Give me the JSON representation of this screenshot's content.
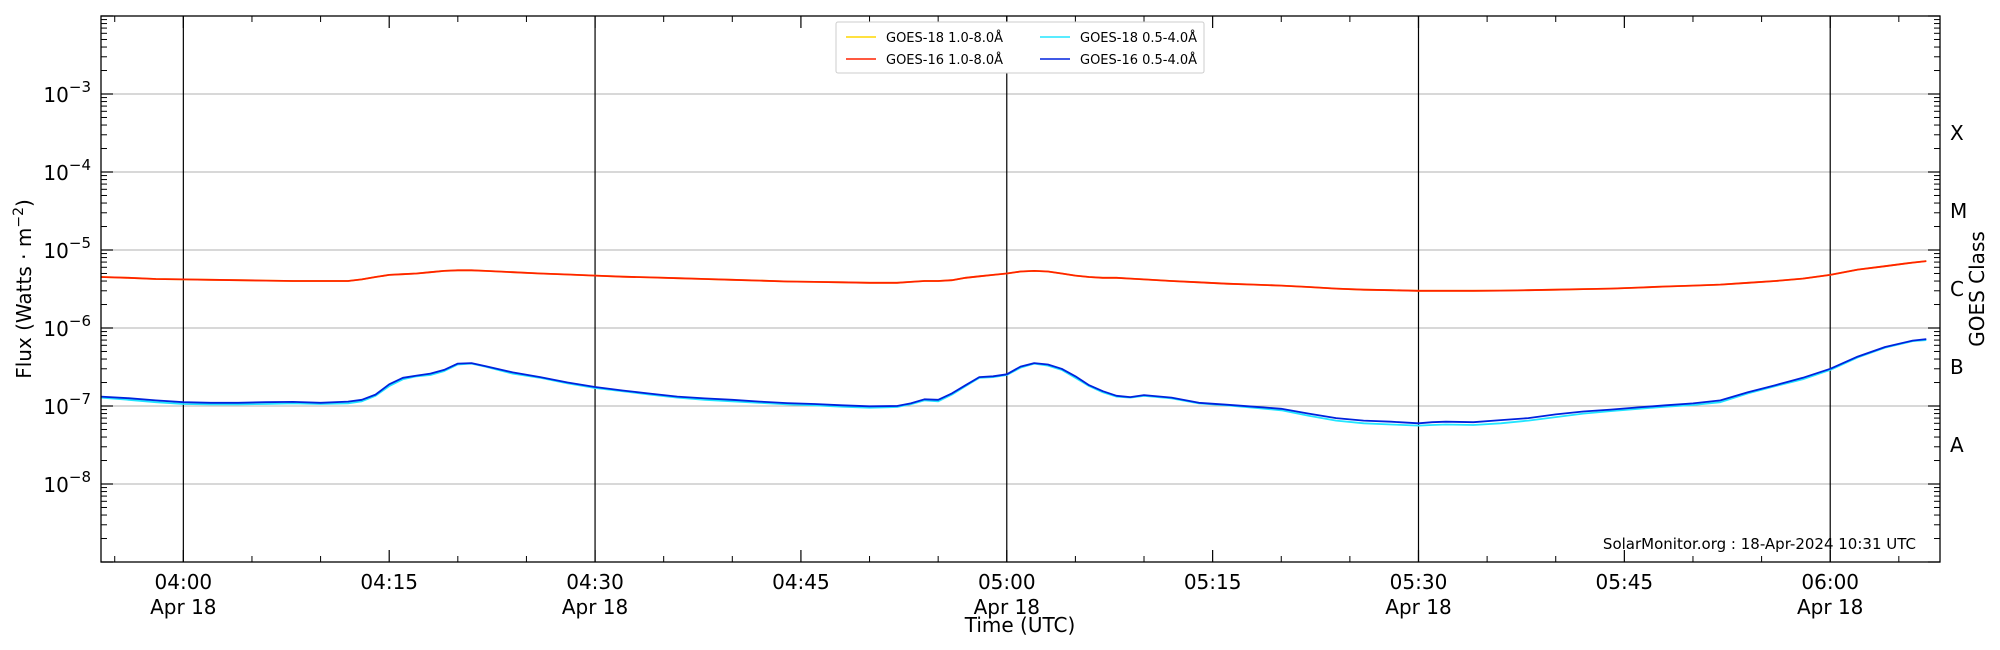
{
  "chart_data": {
    "type": "line",
    "xlabel": "Time (UTC)",
    "ylabel": "Flux (Watts · m",
    "ylabel_sup": "−2",
    "ylabel_end": ")",
    "right_axis_label": "GOES Class",
    "y_scale": "log",
    "xlim": [
      "03:54",
      "06:08"
    ],
    "ylim_exponent": [
      -9,
      -2
    ],
    "y_ticks": [
      {
        "exp": -8,
        "base": "10",
        "sup": "−8"
      },
      {
        "exp": -7,
        "base": "10",
        "sup": "−7"
      },
      {
        "exp": -6,
        "base": "10",
        "sup": "−6"
      },
      {
        "exp": -5,
        "base": "10",
        "sup": "−5"
      },
      {
        "exp": -4,
        "base": "10",
        "sup": "−4"
      },
      {
        "exp": -3,
        "base": "10",
        "sup": "−3"
      }
    ],
    "x_ticks": [
      {
        "time": "04:00",
        "label": "04:00",
        "sublabel": "Apr 18",
        "vline": true
      },
      {
        "time": "04:15",
        "label": "04:15",
        "sublabel": "",
        "vline": false
      },
      {
        "time": "04:30",
        "label": "04:30",
        "sublabel": "Apr 18",
        "vline": true
      },
      {
        "time": "04:45",
        "label": "04:45",
        "sublabel": "",
        "vline": false
      },
      {
        "time": "05:00",
        "label": "05:00",
        "sublabel": "Apr 18",
        "vline": true
      },
      {
        "time": "05:15",
        "label": "05:15",
        "sublabel": "",
        "vline": false
      },
      {
        "time": "05:30",
        "label": "05:30",
        "sublabel": "Apr 18",
        "vline": true
      },
      {
        "time": "05:45",
        "label": "05:45",
        "sublabel": "",
        "vline": false
      },
      {
        "time": "06:00",
        "label": "06:00",
        "sublabel": "Apr 18",
        "vline": true
      }
    ],
    "goes_classes": [
      {
        "label": "A",
        "exp": -8
      },
      {
        "label": "B",
        "exp": -7
      },
      {
        "label": "C",
        "exp": -6
      },
      {
        "label": "M",
        "exp": -5
      },
      {
        "label": "X",
        "exp": -4
      }
    ],
    "grid": "horizontal at decades",
    "legend_position": "top-center",
    "annotation": "SolarMonitor.org : 18-Apr-2024 10:31 UTC",
    "x": [
      "03:54",
      "03:56",
      "03:58",
      "04:00",
      "04:02",
      "04:04",
      "04:06",
      "04:08",
      "04:10",
      "04:12",
      "04:13",
      "04:14",
      "04:15",
      "04:16",
      "04:17",
      "04:18",
      "04:19",
      "04:20",
      "04:21",
      "04:22",
      "04:24",
      "04:26",
      "04:28",
      "04:30",
      "04:32",
      "04:34",
      "04:36",
      "04:38",
      "04:40",
      "04:42",
      "04:44",
      "04:46",
      "04:48",
      "04:50",
      "04:52",
      "04:53",
      "04:54",
      "04:55",
      "04:56",
      "04:57",
      "04:58",
      "04:59",
      "05:00",
      "05:01",
      "05:02",
      "05:03",
      "05:04",
      "05:05",
      "05:06",
      "05:07",
      "05:08",
      "05:09",
      "05:10",
      "05:12",
      "05:14",
      "05:16",
      "05:18",
      "05:20",
      "05:22",
      "05:24",
      "05:26",
      "05:28",
      "05:30",
      "05:31",
      "05:32",
      "05:34",
      "05:36",
      "05:38",
      "05:40",
      "05:42",
      "05:44",
      "05:46",
      "05:48",
      "05:50",
      "05:52",
      "05:54",
      "05:56",
      "05:58",
      "06:00",
      "06:02",
      "06:04",
      "06:06",
      "06:07"
    ],
    "series": [
      {
        "name": "GOES-18 1.0-8.0Å",
        "color": "#ffd700",
        "values": [
          4.5e-06,
          4.4e-06,
          4.25e-06,
          4.2e-06,
          4.15e-06,
          4.1e-06,
          4.05e-06,
          4e-06,
          4e-06,
          4e-06,
          4.2e-06,
          4.5e-06,
          4.8e-06,
          4.9e-06,
          5e-06,
          5.2e-06,
          5.4e-06,
          5.5e-06,
          5.5e-06,
          5.4e-06,
          5.2e-06,
          5e-06,
          4.85e-06,
          4.7e-06,
          4.55e-06,
          4.45e-06,
          4.35e-06,
          4.25e-06,
          4.15e-06,
          4.05e-06,
          3.95e-06,
          3.9e-06,
          3.85e-06,
          3.8e-06,
          3.8e-06,
          3.9e-06,
          4e-06,
          4e-06,
          4.1e-06,
          4.4e-06,
          4.6e-06,
          4.8e-06,
          5e-06,
          5.3e-06,
          5.4e-06,
          5.3e-06,
          5e-06,
          4.7e-06,
          4.5e-06,
          4.4e-06,
          4.4e-06,
          4.3e-06,
          4.2e-06,
          4e-06,
          3.85e-06,
          3.7e-06,
          3.6e-06,
          3.5e-06,
          3.35e-06,
          3.2e-06,
          3.1e-06,
          3.05e-06,
          3e-06,
          3e-06,
          3e-06,
          3e-06,
          3.02e-06,
          3.05e-06,
          3.1e-06,
          3.15e-06,
          3.2e-06,
          3.3e-06,
          3.4e-06,
          3.5e-06,
          3.6e-06,
          3.8e-06,
          4e-06,
          4.3e-06,
          4.8e-06,
          5.6e-06,
          6.2e-06,
          6.9e-06,
          7.2e-06
        ]
      },
      {
        "name": "GOES-16 1.0-8.0Å",
        "color": "#ff2200",
        "values": [
          4.5e-06,
          4.4e-06,
          4.25e-06,
          4.2e-06,
          4.15e-06,
          4.1e-06,
          4.05e-06,
          4e-06,
          4e-06,
          4e-06,
          4.2e-06,
          4.5e-06,
          4.8e-06,
          4.9e-06,
          5e-06,
          5.2e-06,
          5.4e-06,
          5.5e-06,
          5.5e-06,
          5.4e-06,
          5.2e-06,
          5e-06,
          4.85e-06,
          4.7e-06,
          4.55e-06,
          4.45e-06,
          4.35e-06,
          4.25e-06,
          4.15e-06,
          4.05e-06,
          3.95e-06,
          3.9e-06,
          3.85e-06,
          3.8e-06,
          3.8e-06,
          3.9e-06,
          4e-06,
          4e-06,
          4.1e-06,
          4.4e-06,
          4.6e-06,
          4.8e-06,
          5e-06,
          5.3e-06,
          5.4e-06,
          5.3e-06,
          5e-06,
          4.7e-06,
          4.5e-06,
          4.4e-06,
          4.4e-06,
          4.3e-06,
          4.2e-06,
          4e-06,
          3.85e-06,
          3.7e-06,
          3.6e-06,
          3.5e-06,
          3.35e-06,
          3.2e-06,
          3.1e-06,
          3.05e-06,
          3e-06,
          3e-06,
          3e-06,
          3e-06,
          3.02e-06,
          3.05e-06,
          3.1e-06,
          3.15e-06,
          3.2e-06,
          3.3e-06,
          3.4e-06,
          3.5e-06,
          3.6e-06,
          3.8e-06,
          4e-06,
          4.3e-06,
          4.8e-06,
          5.6e-06,
          6.2e-06,
          6.9e-06,
          7.2e-06
        ]
      },
      {
        "name": "GOES-18 0.5-4.0Å",
        "color": "#22e5ff",
        "values": [
          1.28e-07,
          1.2e-07,
          1.12e-07,
          1.06e-07,
          1.05e-07,
          1.05e-07,
          1.06e-07,
          1.08e-07,
          1.06e-07,
          1.08e-07,
          1.15e-07,
          1.35e-07,
          1.8e-07,
          2.2e-07,
          2.4e-07,
          2.5e-07,
          2.8e-07,
          3.4e-07,
          3.5e-07,
          3.2e-07,
          2.6e-07,
          2.3e-07,
          1.95e-07,
          1.7e-07,
          1.55e-07,
          1.4e-07,
          1.28e-07,
          1.2e-07,
          1.15e-07,
          1.1e-07,
          1.05e-07,
          1.02e-07,
          9.8e-08,
          9.5e-08,
          9.7e-08,
          1.05e-07,
          1.18e-07,
          1.15e-07,
          1.4e-07,
          1.8e-07,
          2.3e-07,
          2.35e-07,
          2.5e-07,
          3.1e-07,
          3.5e-07,
          3.3e-07,
          2.9e-07,
          2.3e-07,
          1.8e-07,
          1.5e-07,
          1.32e-07,
          1.28e-07,
          1.35e-07,
          1.25e-07,
          1.08e-07,
          1.02e-07,
          9.5e-08,
          8.8e-08,
          7.5e-08,
          6.5e-08,
          6e-08,
          5.8e-08,
          5.6e-08,
          5.7e-08,
          5.8e-08,
          5.7e-08,
          6e-08,
          6.5e-08,
          7.2e-08,
          8e-08,
          8.6e-08,
          9.2e-08,
          9.8e-08,
          1.03e-07,
          1.12e-07,
          1.45e-07,
          1.8e-07,
          2.2e-07,
          2.9e-07,
          4.2e-07,
          5.6e-07,
          6.8e-07,
          7e-07
        ]
      },
      {
        "name": "GOES-16 0.5-4.0Å",
        "color": "#0022dd",
        "values": [
          1.32e-07,
          1.26e-07,
          1.18e-07,
          1.12e-07,
          1.1e-07,
          1.1e-07,
          1.12e-07,
          1.13e-07,
          1.1e-07,
          1.14e-07,
          1.2e-07,
          1.4e-07,
          1.9e-07,
          2.3e-07,
          2.45e-07,
          2.6e-07,
          2.9e-07,
          3.5e-07,
          3.55e-07,
          3.25e-07,
          2.7e-07,
          2.35e-07,
          2e-07,
          1.75e-07,
          1.58e-07,
          1.44e-07,
          1.32e-07,
          1.25e-07,
          1.2e-07,
          1.14e-07,
          1.09e-07,
          1.06e-07,
          1.02e-07,
          9.9e-08,
          1e-07,
          1.08e-07,
          1.22e-07,
          1.2e-07,
          1.45e-07,
          1.85e-07,
          2.35e-07,
          2.4e-07,
          2.55e-07,
          3.2e-07,
          3.55e-07,
          3.4e-07,
          3e-07,
          2.4e-07,
          1.85e-07,
          1.55e-07,
          1.35e-07,
          1.3e-07,
          1.38e-07,
          1.28e-07,
          1.1e-07,
          1.04e-07,
          9.8e-08,
          9.2e-08,
          8e-08,
          7e-08,
          6.5e-08,
          6.3e-08,
          6e-08,
          6.2e-08,
          6.3e-08,
          6.2e-08,
          6.6e-08,
          7e-08,
          7.8e-08,
          8.5e-08,
          9e-08,
          9.6e-08,
          1.02e-07,
          1.08e-07,
          1.18e-07,
          1.5e-07,
          1.85e-07,
          2.3e-07,
          3e-07,
          4.3e-07,
          5.7e-07,
          6.9e-07,
          7.2e-07
        ]
      }
    ]
  }
}
